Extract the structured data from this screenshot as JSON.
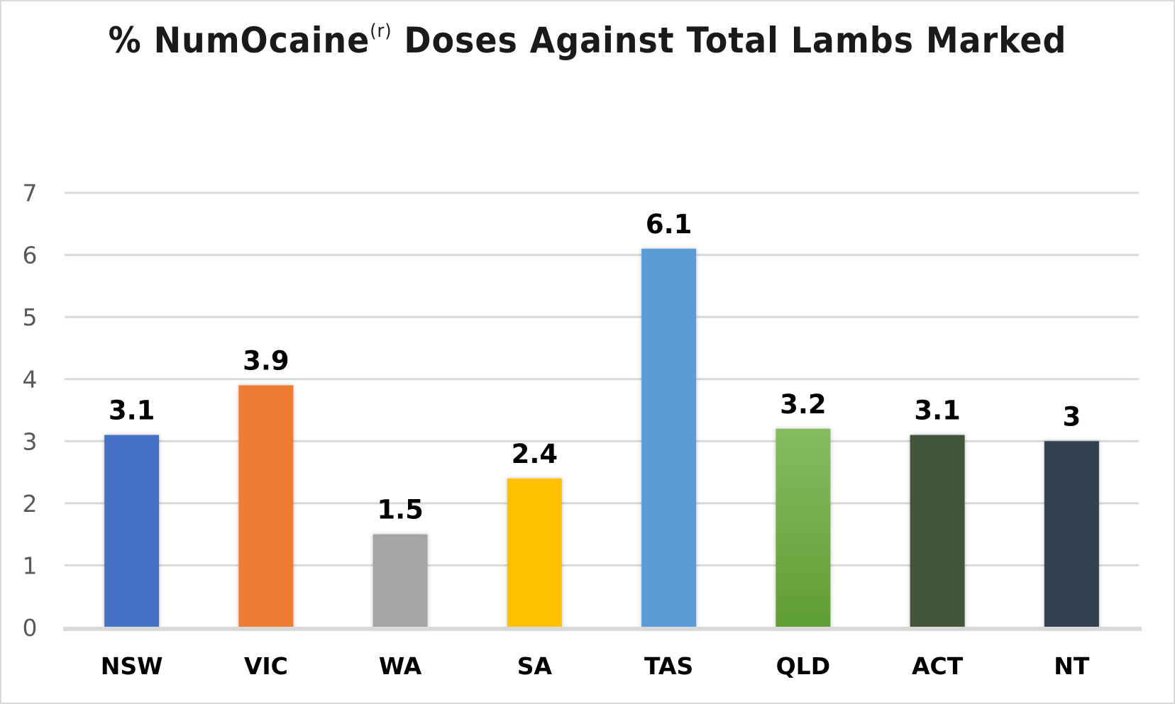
{
  "chart_data": {
    "type": "bar",
    "title": "% NumOcaine",
    "title_superscript": "(r)",
    "title_rest": " Doses Against Total Lambs Marked",
    "categories": [
      "NSW",
      "VIC",
      "WA",
      "SA",
      "TAS",
      "QLD",
      "ACT",
      "NT"
    ],
    "values": [
      3.1,
      3.9,
      1.5,
      2.4,
      6.1,
      3.2,
      3.1,
      3
    ],
    "data_labels": [
      "3.1",
      "3.9",
      "1.5",
      "2.4",
      "6.1",
      "3.2",
      "3.1",
      "3"
    ],
    "colors": [
      "#4472C4",
      "#ED7D31",
      "#A5A5A5",
      "#FFC000",
      "#5B9BD5",
      "#70AD47",
      "#43543A",
      "#333F50"
    ],
    "ylim": [
      0,
      7
    ],
    "yticks": [
      0,
      1,
      2,
      3,
      4,
      5,
      6,
      7
    ],
    "grid": true,
    "legend": "none",
    "xlabel": "",
    "ylabel": ""
  }
}
